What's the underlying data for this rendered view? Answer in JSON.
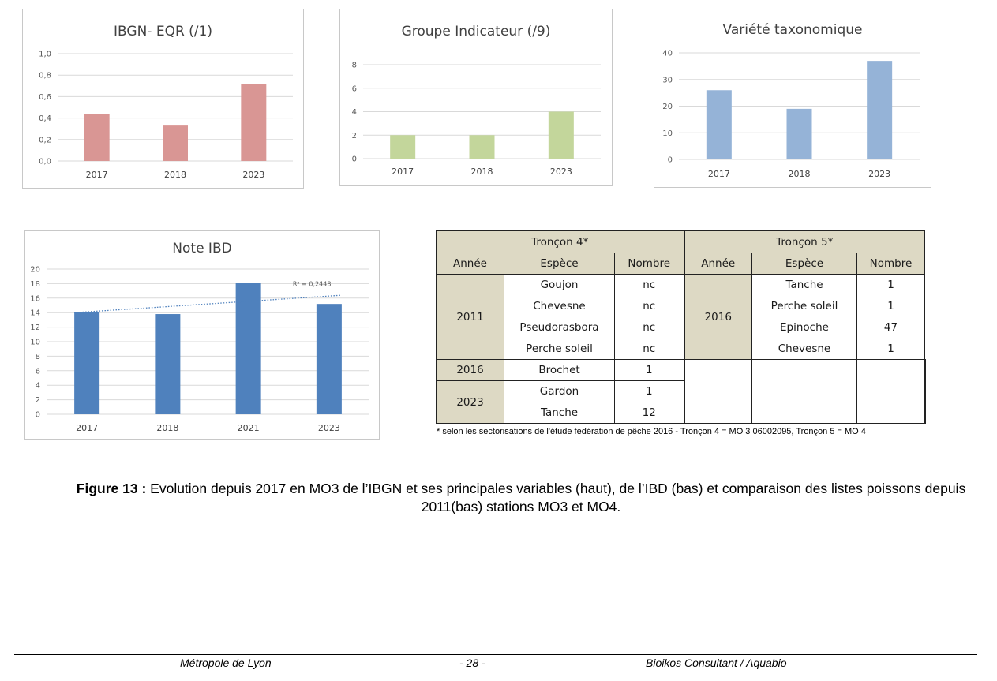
{
  "chart_data": [
    {
      "type": "bar",
      "title": "IBGN- EQR (/1)",
      "categories": [
        "2017",
        "2018",
        "2023"
      ],
      "values": [
        0.44,
        0.33,
        0.72
      ],
      "ylim": [
        0,
        1.0
      ],
      "yticks": [
        "0,0",
        "0,2",
        "0,4",
        "0,6",
        "0,8",
        "1,0"
      ],
      "color": "#d99694",
      "grid": true
    },
    {
      "type": "bar",
      "title": "Groupe Indicateur  (/9)",
      "categories": [
        "2017",
        "2018",
        "2023"
      ],
      "values": [
        2,
        2,
        4
      ],
      "ylim": [
        0,
        8
      ],
      "yticks": [
        "0",
        "2",
        "4",
        "6",
        "8"
      ],
      "color": "#c3d69b",
      "grid": true
    },
    {
      "type": "bar",
      "title": "Variété taxonomique",
      "categories": [
        "2017",
        "2018",
        "2023"
      ],
      "values": [
        26,
        19,
        37
      ],
      "ylim": [
        0,
        40
      ],
      "yticks": [
        "0",
        "10",
        "20",
        "30",
        "40"
      ],
      "color": "#95b3d7",
      "grid": true
    },
    {
      "type": "bar",
      "title": "Note IBD",
      "categories": [
        "2017",
        "2018",
        "2021",
        "2023"
      ],
      "values": [
        14.1,
        13.8,
        18.1,
        15.2
      ],
      "ylim": [
        0,
        20
      ],
      "yticks": [
        "0",
        "2",
        "4",
        "6",
        "8",
        "10",
        "12",
        "14",
        "16",
        "18",
        "20"
      ],
      "color": "#4f81bd",
      "grid": true,
      "trendline": {
        "type": "linear",
        "label": "R² = 0,2448",
        "start": 14.0,
        "end": 16.4
      }
    }
  ],
  "table": {
    "sections": [
      "Tronçon 4*",
      "Tronçon 5*"
    ],
    "headers": [
      "Année",
      "Espèce",
      "Nombre",
      "Année",
      "Espèce",
      "Nombre"
    ],
    "left": [
      {
        "year": "2011",
        "rows": [
          [
            "Goujon",
            "nc"
          ],
          [
            "Chevesne",
            "nc"
          ],
          [
            "Pseudorasbora",
            "nc"
          ],
          [
            "Perche soleil",
            "nc"
          ]
        ]
      },
      {
        "year": "2016",
        "rows": [
          [
            "Brochet",
            "1"
          ]
        ]
      },
      {
        "year": "2023",
        "rows": [
          [
            "Gardon",
            "1"
          ],
          [
            "Tanche",
            "12"
          ]
        ]
      }
    ],
    "right": [
      {
        "year": "2016",
        "rows": [
          [
            "Tanche",
            "1"
          ],
          [
            "Perche soleil",
            "1"
          ],
          [
            "Epinoche",
            "47"
          ],
          [
            "Chevesne",
            "1"
          ]
        ]
      }
    ],
    "footnote": "* selon les sectorisations de l'étude fédération de pêche 2016 - Tronçon 4 = MO 3  06002095, Tronçon 5 = MO 4"
  },
  "caption": {
    "label": "Figure 13 :",
    "text": " Evolution depuis 2017 en MO3 de l’IBGN et ses principales variables (haut), de l’IBD (bas) et comparaison des listes poissons depuis 2011(bas) stations MO3 et MO4."
  },
  "footer": {
    "left": "Métropole de Lyon",
    "center": "- 28 -",
    "right": "Bioikos Consultant / Aquabio"
  }
}
